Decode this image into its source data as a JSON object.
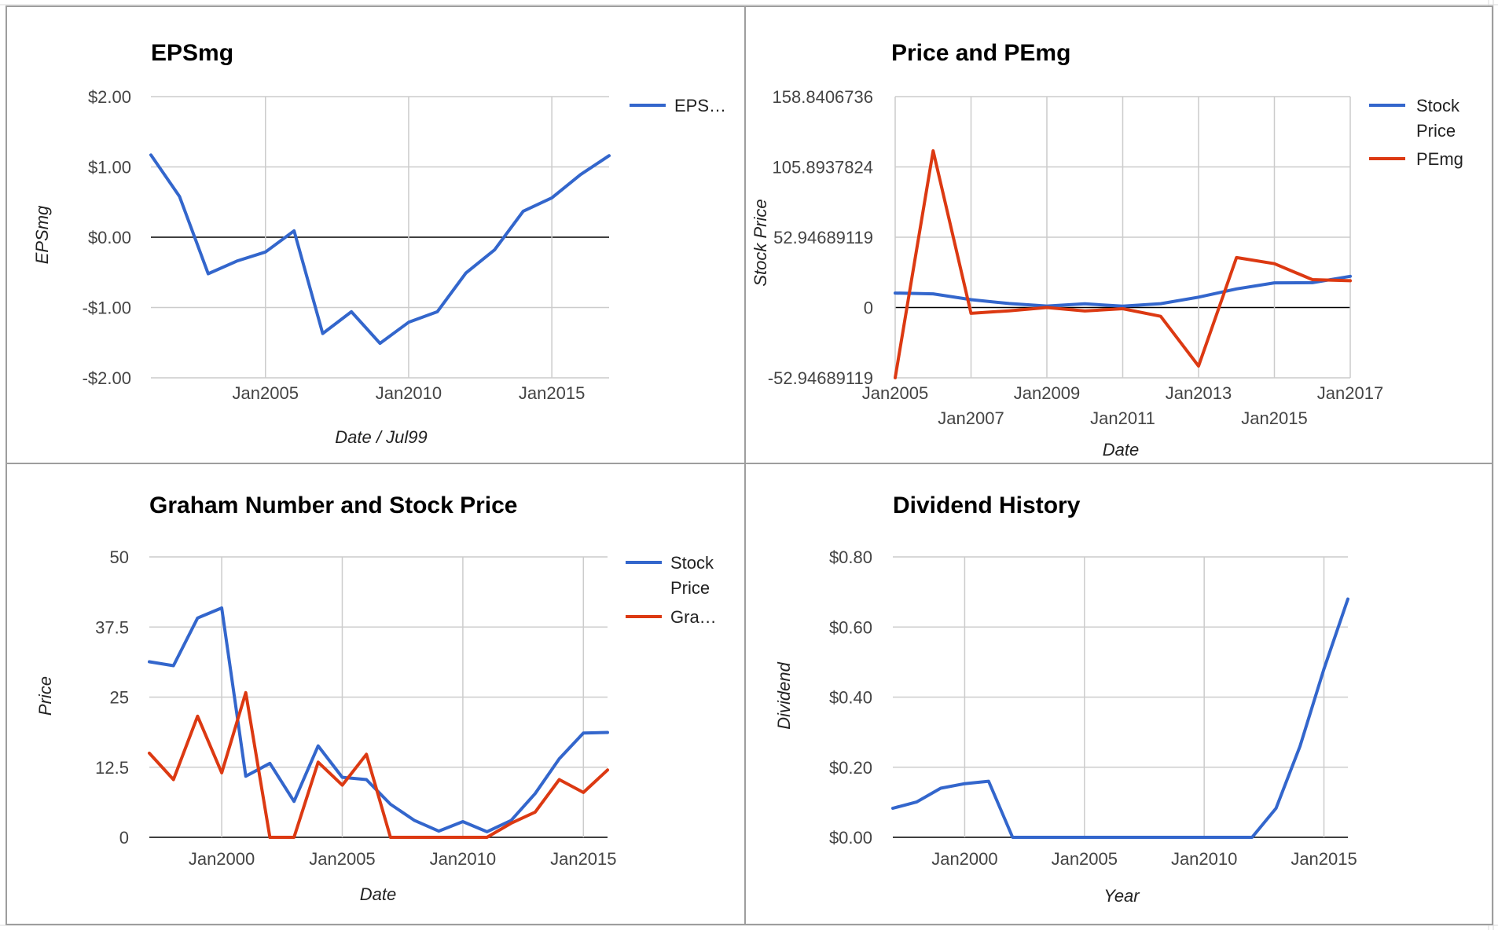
{
  "colors": {
    "blue": "#3366cc",
    "red": "#dc3912",
    "grid": "#cccccc",
    "zero": "#000000"
  },
  "chart_data": [
    {
      "type": "line",
      "title": "EPSmg",
      "xlabel": "Date / Jul99",
      "ylabel": "EPSmg",
      "x_ticks": [
        "Jan2005",
        "Jan2010",
        "Jan2015"
      ],
      "x_tick_values": [
        2005,
        2010,
        2015
      ],
      "xlim": [
        2001,
        2017
      ],
      "y_ticks": [
        "$2.00",
        "$1.00",
        "$0.00",
        "-$1.00",
        "-$2.00"
      ],
      "y_tick_values": [
        2,
        1,
        0,
        -1,
        -2
      ],
      "ylim": [
        -2,
        2
      ],
      "grid": true,
      "legend_position": "right",
      "legend": [
        "EPS…"
      ],
      "series": [
        {
          "name": "EPS…",
          "color": "blue",
          "x": [
            2001,
            2002,
            2003,
            2004,
            2005,
            2006,
            2007,
            2008,
            2009,
            2010,
            2011,
            2012,
            2013,
            2014,
            2015,
            2016,
            2017
          ],
          "y": [
            1.17,
            0.58,
            -0.52,
            -0.34,
            -0.21,
            0.09,
            -1.37,
            -1.06,
            -1.51,
            -1.21,
            -1.06,
            -0.51,
            -0.18,
            0.37,
            0.56,
            0.89,
            1.16
          ]
        }
      ]
    },
    {
      "type": "line",
      "title": "Price and PEmg",
      "xlabel": "Date",
      "ylabel": "Stock Price",
      "x_ticks": [
        "Jan2005",
        "Jan2007",
        "Jan2009",
        "Jan2011",
        "Jan2013",
        "Jan2015",
        "Jan2017"
      ],
      "x_tick_values": [
        2005,
        2007,
        2009,
        2011,
        2013,
        2015,
        2017
      ],
      "xlim": [
        2005,
        2017
      ],
      "y_ticks": [
        "158.8406736",
        "105.8937824",
        "52.94689119",
        "0",
        "-52.94689119"
      ],
      "y_tick_values": [
        158.8406736,
        105.8937824,
        52.94689119,
        0,
        -52.94689119
      ],
      "ylim": [
        -52.94689119,
        158.8406736
      ],
      "grid": true,
      "legend_position": "right",
      "legend": [
        "Stock",
        "Price",
        "PEmg"
      ],
      "series": [
        {
          "name": "Stock Price",
          "color": "blue",
          "x": [
            2005,
            2006,
            2007,
            2008,
            2009,
            2010,
            2011,
            2012,
            2013,
            2014,
            2015,
            2016,
            2017
          ],
          "y": [
            10.9,
            10.3,
            5.9,
            3.0,
            1.1,
            2.8,
            1.0,
            2.9,
            7.8,
            14.0,
            18.6,
            18.7,
            23.5
          ]
        },
        {
          "name": "PEmg",
          "color": "red",
          "x": [
            2005,
            2006,
            2007,
            2008,
            2009,
            2010,
            2011,
            2012,
            2013,
            2014,
            2015,
            2016,
            2017
          ],
          "y": [
            -52.9,
            118.0,
            -4.4,
            -2.5,
            0.0,
            -2.6,
            -0.9,
            -6.6,
            -44.1,
            37.6,
            33.0,
            21.0,
            20.2
          ]
        }
      ]
    },
    {
      "type": "line",
      "title": "Graham Number and Stock Price",
      "xlabel": "Date",
      "ylabel": "Price",
      "x_ticks": [
        "Jan2000",
        "Jan2005",
        "Jan2010",
        "Jan2015"
      ],
      "x_tick_values": [
        2000,
        2005,
        2010,
        2015
      ],
      "xlim": [
        1997,
        2016
      ],
      "y_ticks": [
        "50",
        "37.5",
        "25",
        "12.5",
        "0"
      ],
      "y_tick_values": [
        50,
        37.5,
        25,
        12.5,
        0
      ],
      "ylim": [
        0,
        50
      ],
      "grid": true,
      "legend_position": "right",
      "legend": [
        "Stock",
        "Price",
        "Gra…"
      ],
      "series": [
        {
          "name": "Stock Price",
          "color": "blue",
          "x": [
            1997,
            1998,
            1999,
            2000,
            2001,
            2002,
            2003,
            2004,
            2005,
            2006,
            2007,
            2008,
            2009,
            2010,
            2011,
            2012,
            2013,
            2014,
            2015,
            2016
          ],
          "y": [
            31.3,
            30.6,
            39.1,
            40.9,
            10.9,
            13.2,
            6.4,
            16.3,
            10.7,
            10.3,
            5.9,
            3.0,
            1.1,
            2.8,
            1.0,
            3.0,
            7.8,
            14.0,
            18.6,
            18.7
          ]
        },
        {
          "name": "Gra…",
          "color": "red",
          "x": [
            1997,
            1998,
            1999,
            2000,
            2001,
            2002,
            2003,
            2004,
            2005,
            2006,
            2007,
            2008,
            2009,
            2010,
            2011,
            2012,
            2013,
            2014,
            2015,
            2016
          ],
          "y": [
            15.0,
            10.3,
            21.6,
            11.5,
            25.8,
            0.0,
            0.0,
            13.4,
            9.3,
            14.8,
            0.0,
            0.0,
            0.0,
            0.0,
            0.0,
            2.5,
            4.5,
            10.3,
            8.0,
            12.0
          ]
        }
      ]
    },
    {
      "type": "line",
      "title": "Dividend History",
      "xlabel": "Year",
      "ylabel": "Dividend",
      "x_ticks": [
        "Jan2000",
        "Jan2005",
        "Jan2010",
        "Jan2015"
      ],
      "x_tick_values": [
        2000,
        2005,
        2010,
        2015
      ],
      "xlim": [
        1997,
        2016
      ],
      "y_ticks": [
        "$0.80",
        "$0.60",
        "$0.40",
        "$0.20",
        "$0.00"
      ],
      "y_tick_values": [
        0.8,
        0.6,
        0.4,
        0.2,
        0
      ],
      "ylim": [
        0,
        0.8
      ],
      "grid": true,
      "legend_position": "none",
      "legend": [],
      "series": [
        {
          "name": "",
          "color": "blue",
          "x": [
            1997,
            1998,
            1999,
            2000,
            2001,
            2002,
            2003,
            2004,
            2005,
            2006,
            2007,
            2008,
            2009,
            2010,
            2011,
            2012,
            2013,
            2014,
            2015,
            2016
          ],
          "y": [
            0.083,
            0.101,
            0.14,
            0.153,
            0.16,
            0,
            0,
            0,
            0,
            0,
            0,
            0,
            0,
            0,
            0,
            0,
            0.083,
            0.26,
            0.48,
            0.68
          ]
        }
      ]
    }
  ]
}
